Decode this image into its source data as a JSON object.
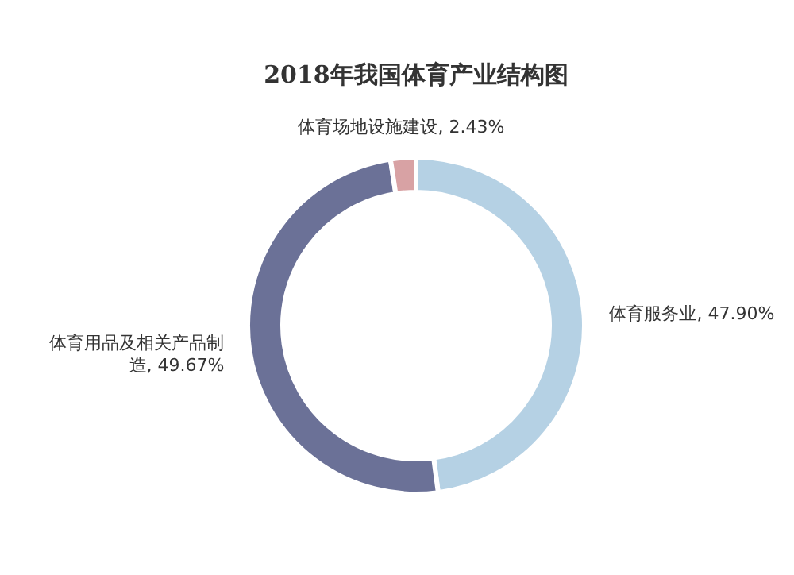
{
  "chart_data": {
    "type": "donut",
    "title": "2018年我国体育产业结构图",
    "categories": [
      "体育服务业",
      "体育用品及相关产品制造",
      "体育场地设施建设"
    ],
    "values": [
      47.9,
      49.67,
      2.43
    ],
    "value_labels": [
      "47.90%",
      "49.67%",
      "2.43%"
    ],
    "colors": [
      "#b5d1e4",
      "#6b7197",
      "#d8a2a4"
    ]
  }
}
